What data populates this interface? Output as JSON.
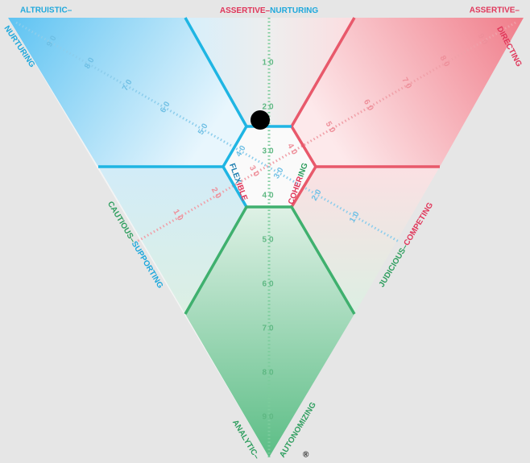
{
  "corners": {
    "top_left": "ALTRUISTIC–",
    "top_middle_a": "ASSERTIVE–",
    "top_middle_b": "NURTURING",
    "top_right": "ASSERTIVE–",
    "right_edge": "DIRECTING",
    "left_edge": "NURTURING",
    "left_middle_a": "CAUTIOUS–",
    "left_middle_b": "SUPPORTING",
    "right_middle_a": "JUDICIOUS–",
    "right_middle_b": "COMPETING",
    "bottom_a": "ANALYTIC–",
    "bottom_b": "AUTONOMIZING",
    "mark": "®"
  },
  "hub": {
    "flexible_a": "FLEX",
    "flexible_b": "IBLE",
    "cohering_a": "COHER",
    "cohering_b": "ING"
  },
  "scales": {
    "green": [
      "10",
      "20",
      "30",
      "40",
      "50",
      "60",
      "70",
      "80",
      "90"
    ],
    "blue": [
      "90",
      "80",
      "70",
      "60",
      "50",
      "40",
      "30",
      "20",
      "10"
    ],
    "red": [
      "90",
      "80",
      "70",
      "60",
      "50",
      "40",
      "30",
      "20",
      "10"
    ]
  }
}
